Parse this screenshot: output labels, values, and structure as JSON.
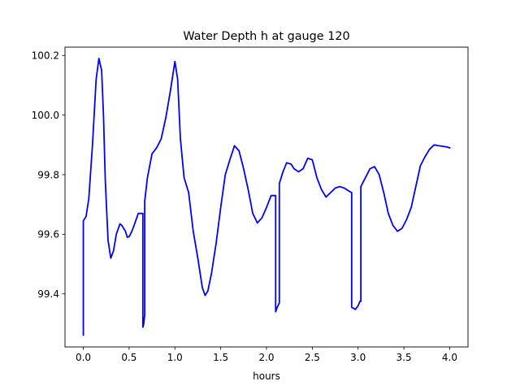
{
  "chart_data": {
    "type": "line",
    "title": "Water Depth h at gauge 120",
    "xlabel": "hours",
    "ylabel": "",
    "xlim": [
      -0.2,
      4.2
    ],
    "ylim": [
      99.222,
      100.228
    ],
    "xticks": [
      0.0,
      0.5,
      1.0,
      1.5,
      2.0,
      2.5,
      3.0,
      3.5,
      4.0
    ],
    "xtick_labels": [
      "0.0",
      "0.5",
      "1.0",
      "1.5",
      "2.0",
      "2.5",
      "3.0",
      "3.5",
      "4.0"
    ],
    "yticks": [
      99.4,
      99.6,
      99.8,
      100.0,
      100.2
    ],
    "ytick_labels": [
      "99.4",
      "99.6",
      "99.8",
      "100.0",
      "100.2"
    ],
    "grid": false,
    "colors": {
      "line": "#0000ff"
    },
    "series": [
      {
        "x": [
          0.0,
          0.0,
          0.03,
          0.06,
          0.1,
          0.14,
          0.17,
          0.2,
          0.22,
          0.24,
          0.27,
          0.3,
          0.33,
          0.36,
          0.4,
          0.42,
          0.46,
          0.48,
          0.5,
          0.53,
          0.56,
          0.6,
          0.65,
          0.65,
          0.66,
          0.67,
          0.67,
          0.7,
          0.75,
          0.8,
          0.85,
          0.9,
          0.95,
          1.0,
          1.03,
          1.06,
          1.1,
          1.15,
          1.2,
          1.25,
          1.3,
          1.33,
          1.36,
          1.4,
          1.45,
          1.5,
          1.55,
          1.6,
          1.65,
          1.7,
          1.75,
          1.8,
          1.85,
          1.9,
          1.95,
          2.0,
          2.05,
          2.1,
          2.1,
          2.11,
          2.14,
          2.14,
          2.18,
          2.22,
          2.27,
          2.3,
          2.35,
          2.4,
          2.45,
          2.5,
          2.55,
          2.6,
          2.65,
          2.7,
          2.75,
          2.8,
          2.85,
          2.9,
          2.93,
          2.93,
          2.97,
          3.0,
          3.02,
          3.03,
          3.03,
          3.08,
          3.13,
          3.18,
          3.23,
          3.28,
          3.33,
          3.38,
          3.43,
          3.48,
          3.53,
          3.58,
          3.63,
          3.68,
          3.73,
          3.78,
          3.83,
          3.88,
          3.93,
          3.97,
          4.0
        ],
        "y": [
          99.262,
          99.645,
          99.66,
          99.72,
          99.9,
          100.12,
          100.19,
          100.15,
          100.0,
          99.78,
          99.58,
          99.52,
          99.545,
          99.6,
          99.635,
          99.63,
          99.61,
          99.59,
          99.592,
          99.61,
          99.635,
          99.67,
          99.67,
          99.288,
          99.3,
          99.33,
          99.71,
          99.79,
          99.87,
          99.89,
          99.92,
          99.99,
          100.08,
          100.18,
          100.12,
          99.92,
          99.79,
          99.74,
          99.61,
          99.52,
          99.42,
          99.395,
          99.41,
          99.47,
          99.57,
          99.69,
          99.8,
          99.85,
          99.897,
          99.88,
          99.82,
          99.75,
          99.67,
          99.638,
          99.655,
          99.69,
          99.73,
          99.73,
          99.34,
          99.35,
          99.37,
          99.77,
          99.81,
          99.84,
          99.835,
          99.82,
          99.81,
          99.82,
          99.855,
          99.85,
          99.79,
          99.75,
          99.725,
          99.74,
          99.755,
          99.76,
          99.755,
          99.745,
          99.74,
          99.355,
          99.348,
          99.36,
          99.375,
          99.375,
          99.76,
          99.79,
          99.82,
          99.827,
          99.8,
          99.74,
          99.67,
          99.63,
          99.61,
          99.62,
          99.65,
          99.69,
          99.76,
          99.83,
          99.86,
          99.885,
          99.9,
          99.897,
          99.895,
          99.893,
          99.89
        ]
      }
    ]
  }
}
